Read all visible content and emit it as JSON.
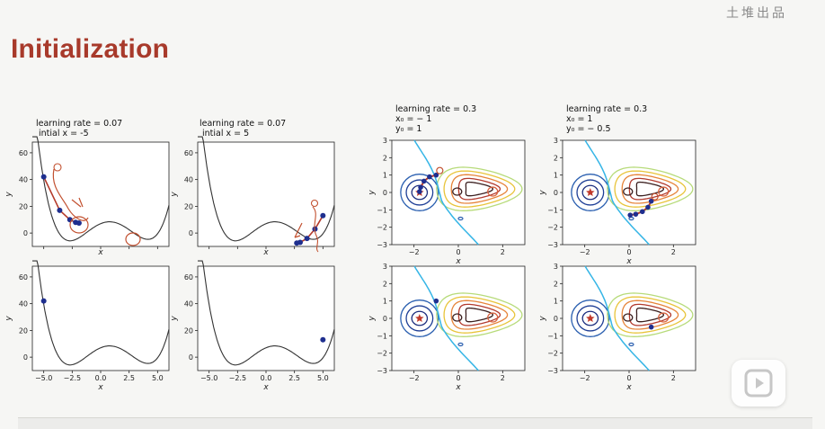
{
  "slide": {
    "title": "Initialization",
    "watermark": "土堆出品"
  },
  "labels": {
    "p1": "learning rate = 0.07\n intial x = -5",
    "p2": "learning rate = 0.07\n intial x = 5",
    "p3": "learning rate = 0.3\nx₀ = − 1\ny₀ = 1",
    "p4": "learning rate = 0.3\nx₀ = 1\ny₀ = − 0.5"
  },
  "axes": {
    "x": "x",
    "y": "y",
    "curve_yticks": [
      "60",
      "40",
      "20",
      "0"
    ],
    "curve_xticks": [
      "−5.0",
      "−2.5",
      "0.0",
      "2.5",
      "5.0"
    ],
    "contour_yticks": [
      "3",
      "2",
      "1",
      "0",
      "−1",
      "−2",
      "−3"
    ],
    "contour_xticks": [
      "−2",
      "0",
      "2"
    ]
  },
  "icons": {
    "play": "play-icon"
  },
  "chart_data": [
    {
      "type": "line",
      "panel": "top-left",
      "curve": "1D loss",
      "xlim": [
        -6,
        6
      ],
      "ylim": [
        -10,
        68
      ],
      "points_x": [
        -5.0,
        -3.6,
        -2.7,
        -2.2,
        -1.9
      ],
      "points_y": [
        42,
        17,
        10,
        8,
        7.5
      ]
    },
    {
      "type": "line",
      "panel": "top-middle",
      "xlim": [
        -6,
        6
      ],
      "ylim": [
        -10,
        68
      ],
      "points_x": [
        5.0,
        4.3,
        3.6,
        3.0,
        2.7
      ],
      "points_y": [
        13,
        3,
        -4,
        -7,
        -7.5
      ]
    },
    {
      "type": "line",
      "panel": "bottom-left",
      "xlim": [
        -6,
        6
      ],
      "ylim": [
        -10,
        68
      ],
      "points_x": [
        -5.0
      ],
      "points_y": [
        42
      ]
    },
    {
      "type": "line",
      "panel": "bottom-middle",
      "xlim": [
        -6,
        6
      ],
      "ylim": [
        -10,
        68
      ],
      "points_x": [
        5.0
      ],
      "points_y": [
        13
      ]
    },
    {
      "type": "heatmap",
      "panel": "top-right-1",
      "xlim": [
        -3,
        3
      ],
      "ylim": [
        -3,
        3
      ],
      "path_x": [
        -1,
        -1.3,
        -1.55,
        -1.7,
        -1.75
      ],
      "path_y": [
        1,
        0.9,
        0.65,
        0.3,
        0.05
      ]
    },
    {
      "type": "heatmap",
      "panel": "top-right-2",
      "xlim": [
        -3,
        3
      ],
      "ylim": [
        -3,
        3
      ],
      "path_x": [
        1,
        0.85,
        0.6,
        0.3,
        0.05
      ],
      "path_y": [
        -0.5,
        -0.85,
        -1.1,
        -1.25,
        -1.3
      ]
    },
    {
      "type": "heatmap",
      "panel": "bottom-right-1",
      "xlim": [
        -3,
        3
      ],
      "ylim": [
        -3,
        3
      ],
      "path_x": [
        -1
      ],
      "path_y": [
        1
      ]
    },
    {
      "type": "heatmap",
      "panel": "bottom-right-2",
      "xlim": [
        -3,
        3
      ],
      "ylim": [
        -3,
        3
      ],
      "path_x": [
        1
      ],
      "path_y": [
        -0.5
      ]
    }
  ]
}
